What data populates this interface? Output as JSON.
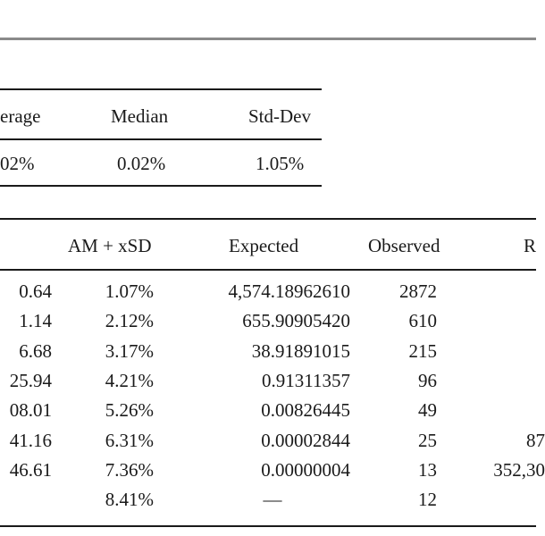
{
  "summary_table": {
    "headers": [
      "erage",
      "Median",
      "Std-Dev"
    ],
    "values": [
      "02%",
      "0.02%",
      "1.05%"
    ]
  },
  "main_table": {
    "headers": [
      "AM + xSD",
      "Expected",
      "Observed",
      "R"
    ],
    "rows": [
      {
        "c0": "0.64",
        "c1": "1.07%",
        "c2": "4,574.18962610",
        "c3": "2872",
        "c4": ""
      },
      {
        "c0": "1.14",
        "c1": "2.12%",
        "c2": "655.90905420",
        "c3": "610",
        "c4": ""
      },
      {
        "c0": "6.68",
        "c1": "3.17%",
        "c2": "38.91891015",
        "c3": "215",
        "c4": ""
      },
      {
        "c0": "25.94",
        "c1": "4.21%",
        "c2": "0.91311357",
        "c3": "96",
        "c4": ""
      },
      {
        "c0": "08.01",
        "c1": "5.26%",
        "c2": "0.00826445",
        "c3": "49",
        "c4": ""
      },
      {
        "c0": "41.16",
        "c1": "6.31%",
        "c2": "0.00002844",
        "c3": "25",
        "c4": "87"
      },
      {
        "c0": "46.61",
        "c1": "7.36%",
        "c2": "0.00000004",
        "c3": "13",
        "c4": "352,30"
      },
      {
        "c0": "",
        "c1": "8.41%",
        "c2": "—",
        "c3": "12",
        "c4": ""
      }
    ]
  }
}
